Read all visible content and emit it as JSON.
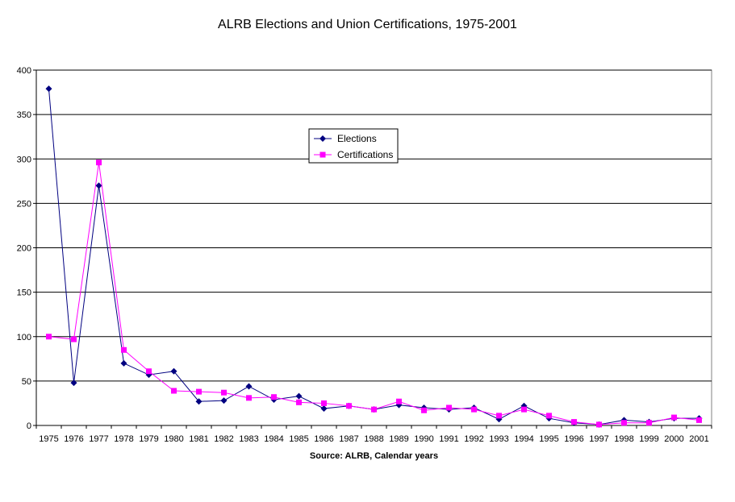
{
  "chart_data": {
    "type": "line",
    "title": "ALRB Elections and Union Certifications, 1975-2001",
    "xlabel": "Source: ALRB, Calendar years",
    "ylabel": "",
    "ylim": [
      0,
      400
    ],
    "yticks": [
      "0",
      "50",
      "100",
      "150",
      "200",
      "250",
      "300",
      "350",
      "400"
    ],
    "categories": [
      "1975",
      "1976",
      "1977",
      "1978",
      "1979",
      "1980",
      "1981",
      "1982",
      "1983",
      "1984",
      "1985",
      "1986",
      "1987",
      "1988",
      "1989",
      "1990",
      "1991",
      "1992",
      "1993",
      "1994",
      "1995",
      "1996",
      "1997",
      "1998",
      "1999",
      "2000",
      "2001"
    ],
    "grid": true,
    "legend_position": "top-center",
    "series": [
      {
        "name": "Elections",
        "color": "#000080",
        "marker": "diamond",
        "values": [
          379,
          48,
          270,
          70,
          57,
          61,
          27,
          28,
          44,
          29,
          33,
          19,
          22,
          18,
          23,
          20,
          18,
          20,
          7,
          22,
          8,
          3,
          1,
          6,
          4,
          8,
          8
        ]
      },
      {
        "name": "Certifications",
        "color": "#FF00FF",
        "marker": "square",
        "values": [
          100,
          97,
          296,
          85,
          61,
          39,
          38,
          37,
          31,
          32,
          26,
          25,
          22,
          18,
          27,
          17,
          20,
          18,
          11,
          18,
          11,
          4,
          1,
          3,
          3,
          9,
          6
        ]
      }
    ]
  }
}
